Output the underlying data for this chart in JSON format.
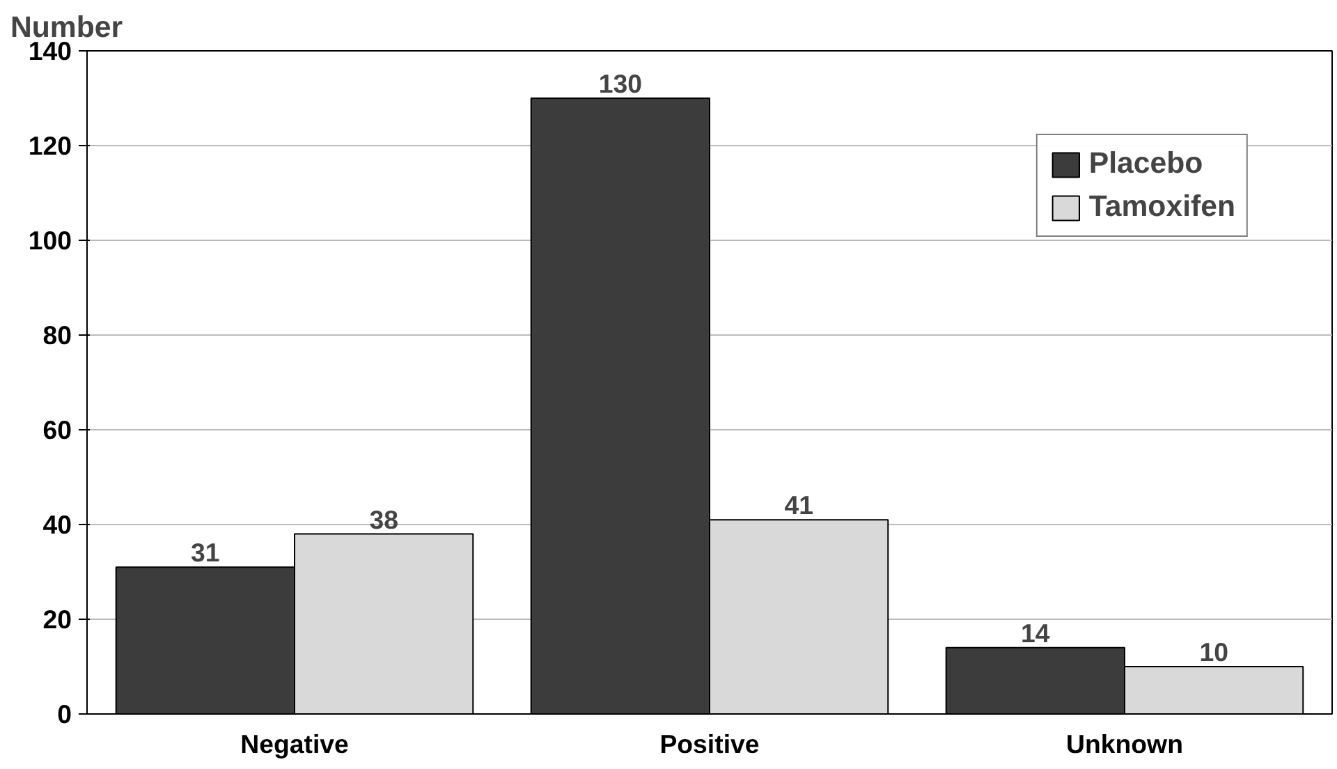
{
  "chart_data": {
    "type": "bar",
    "ylabel": "Number",
    "categories": [
      "Negative",
      "Positive",
      "Unknown"
    ],
    "series": [
      {
        "name": "Placebo",
        "color": "#3c3c3c",
        "values": [
          31,
          130,
          14
        ]
      },
      {
        "name": "Tamoxifen",
        "color": "#d9d9d9",
        "values": [
          38,
          41,
          10
        ]
      }
    ],
    "ylim": [
      0,
      140
    ],
    "yticks": [
      0,
      20,
      40,
      60,
      80,
      100,
      120,
      140
    ],
    "grid": "y",
    "legend": "top right",
    "data_labels": true
  }
}
